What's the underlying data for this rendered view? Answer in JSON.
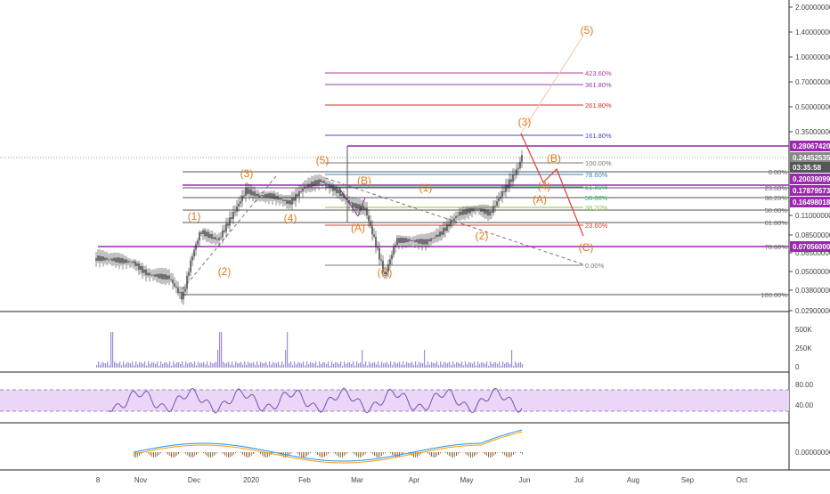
{
  "chart_data": [
    {
      "type": "candlestick",
      "scale": "log",
      "y_ticks": [
        "2.00000000",
        "1.40000000",
        "1.00000000",
        "0.70000000",
        "0.50000000",
        "0.35000000",
        "0.11000000",
        "0.08500000",
        "0.06500000",
        "0.05000000",
        "0.03800000",
        "0.02900000"
      ],
      "x_ticks": [
        "8",
        "Nov",
        "Dec",
        "2020",
        "Feb",
        "Mar",
        "Apr",
        "May",
        "Jun",
        "Jul",
        "Aug",
        "Sep",
        "Oct"
      ],
      "price_tags": [
        {
          "value": "0.28067420",
          "color": "#9c27b0"
        },
        {
          "value": "0.24452535",
          "color": "#888888"
        },
        {
          "value": "03:35:58",
          "color": "#555555"
        },
        {
          "value": "0.20039099",
          "color": "#9c27b0"
        },
        {
          "value": "0.17879573",
          "color": "#9c27b0"
        },
        {
          "value": "0.16498018",
          "color": "#9c27b0"
        },
        {
          "value": "0.07056000",
          "color": "#9c27b0"
        }
      ],
      "wave_labels": [
        "(1)",
        "(2)",
        "(3)",
        "(4)",
        "(5)",
        "(B)",
        "(A)",
        "(C)",
        "(1)",
        "(2)",
        "(3)",
        "(4)",
        "(5)",
        "(B)",
        "(A)",
        "(C)"
      ],
      "fib_ext": [
        {
          "label": "423.60%",
          "color": "#b0409a"
        },
        {
          "label": "361.80%",
          "color": "#8e44ad"
        },
        {
          "label": "261.80%",
          "color": "#d32f2f"
        },
        {
          "label": "161.80%",
          "color": "#3f51b5"
        },
        {
          "label": "100.00%",
          "color": "#777777"
        },
        {
          "label": "78.60%",
          "color": "#2e86c1"
        },
        {
          "label": "61.80%",
          "color": "#27ae60"
        },
        {
          "label": "50.00%",
          "color": "#27ae60"
        },
        {
          "label": "38.20%",
          "color": "#8bc34a"
        },
        {
          "label": "23.60%",
          "color": "#e53935"
        },
        {
          "label": "0.00%",
          "color": "#777777"
        }
      ],
      "fib_ret": [
        {
          "label": "0.00%"
        },
        {
          "label": "23.60%"
        },
        {
          "label": "38.20%"
        },
        {
          "label": "50.00%"
        },
        {
          "label": "61.80%"
        },
        {
          "label": "78.60%"
        },
        {
          "label": "100.00%"
        }
      ]
    },
    {
      "type": "bar",
      "name": "volume",
      "y_ticks": [
        "500K",
        "250K",
        "0"
      ]
    },
    {
      "type": "line",
      "name": "rsi",
      "y_ticks": [
        "80.00",
        "40.00"
      ]
    },
    {
      "type": "line",
      "name": "macd",
      "y_ticks": [
        "0.00000000"
      ]
    }
  ]
}
